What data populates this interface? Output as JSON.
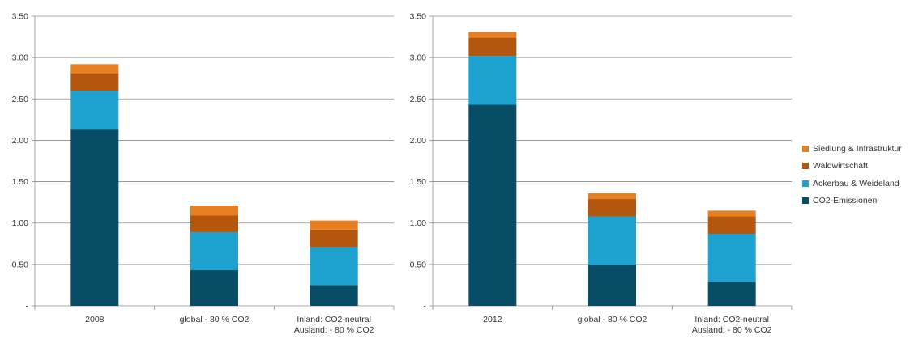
{
  "chart_data": [
    {
      "type": "bar",
      "stacked": true,
      "categories": [
        "2008",
        "global - 80 % CO2",
        "Inland: CO2-neutral\nAusland: - 80 % CO2"
      ],
      "series": [
        {
          "name": "CO2-Emissionen",
          "values": [
            2.13,
            0.43,
            0.25
          ]
        },
        {
          "name": "Ackerbau & Weideland",
          "values": [
            0.47,
            0.46,
            0.46
          ]
        },
        {
          "name": "Waldwirtschaft",
          "values": [
            0.21,
            0.2,
            0.21
          ]
        },
        {
          "name": "Siedlung & Infrastruktur",
          "values": [
            0.11,
            0.12,
            0.11
          ]
        }
      ],
      "ylim": [
        0,
        3.5
      ],
      "yticks": [
        "-",
        "0.50",
        "1.00",
        "1.50",
        "2.00",
        "2.50",
        "3.00",
        "3.50"
      ],
      "grid": true
    },
    {
      "type": "bar",
      "stacked": true,
      "categories": [
        "2012",
        "global - 80 % CO2",
        "Inland: CO2-neutral\nAusland: - 80 % CO2"
      ],
      "series": [
        {
          "name": "CO2-Emissionen",
          "values": [
            2.43,
            0.49,
            0.29
          ]
        },
        {
          "name": "Ackerbau & Weideland",
          "values": [
            0.59,
            0.59,
            0.58
          ]
        },
        {
          "name": "Waldwirtschaft",
          "values": [
            0.22,
            0.21,
            0.21
          ]
        },
        {
          "name": "Siedlung & Infrastruktur",
          "values": [
            0.07,
            0.07,
            0.07
          ]
        }
      ],
      "ylim": [
        0,
        3.5
      ],
      "yticks": [
        "-",
        "0.50",
        "1.00",
        "1.50",
        "2.00",
        "2.50",
        "3.00",
        "3.50"
      ],
      "grid": true
    }
  ],
  "legend": {
    "placement": "right",
    "items": [
      {
        "label": "Siedlung & Infrastruktur",
        "color": "#e67e22"
      },
      {
        "label": "Waldwirtschaft",
        "color": "#b5560f"
      },
      {
        "label": "Ackerbau & Weideland",
        "color": "#1ea2d0"
      },
      {
        "label": "CO2-Emissionen",
        "color": "#074d66"
      }
    ]
  },
  "colors": {
    "CO2-Emissionen": "#074d66",
    "Ackerbau & Weideland": "#1ea2d0",
    "Waldwirtschaft": "#b5560f",
    "Siedlung & Infrastruktur": "#e67e22",
    "gridline": "#8c8c8c",
    "axis": "#8c8c8c"
  }
}
